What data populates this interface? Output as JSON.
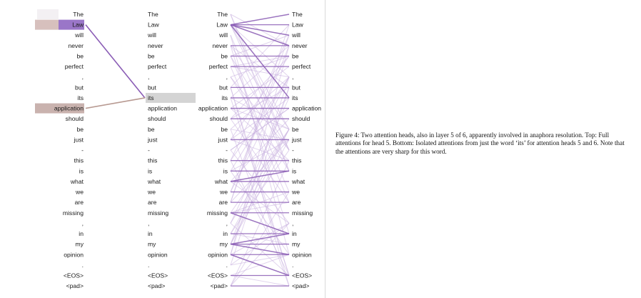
{
  "tokens": [
    "The",
    "Law",
    "will",
    "never",
    "be",
    "perfect",
    ",",
    "but",
    "its",
    "application",
    "should",
    "be",
    "just",
    "-",
    "this",
    "is",
    "what",
    "we",
    "are",
    "missing",
    ",",
    "in",
    "my",
    "opinion",
    ".",
    "<EOS>",
    "<pad>"
  ],
  "caption": "Figure 4: Two attention heads, also in layer 5 of 6, apparently involved in anaphora resolution. Top: Full attentions for head 5. Bottom: Isolated attentions from just the word ‘its’ for attention heads 5 and 6. Note that the attentions are very sharp for this word.",
  "colors": {
    "purple": "#8a5cb5",
    "brown": "#b89a92",
    "lightpurple": "#c9b2e0",
    "highlight_gray": "#d4d4d4"
  },
  "isolated_its": {
    "query_token": "its",
    "head5_target": "Law",
    "head6_target": "application"
  },
  "full_head5_strong_edges": [
    [
      "Law",
      "The"
    ],
    [
      "Law",
      "Law"
    ],
    [
      "Law",
      "will"
    ],
    [
      "Law",
      "never"
    ],
    [
      "Law",
      "its"
    ],
    [
      "never",
      "never"
    ],
    [
      "perfect",
      "perfect"
    ],
    [
      "but",
      "but"
    ],
    [
      "its",
      "its"
    ],
    [
      "application",
      "application"
    ],
    [
      "should",
      "should"
    ],
    [
      "be",
      "be"
    ],
    [
      "just",
      "just"
    ],
    [
      "this",
      "this"
    ],
    [
      "is",
      "is"
    ],
    [
      "what",
      "what"
    ],
    [
      "what",
      "is"
    ],
    [
      "we",
      "we"
    ],
    [
      "are",
      "are"
    ],
    [
      "missing",
      "missing"
    ],
    [
      "in",
      "in"
    ],
    [
      "my",
      "my"
    ],
    [
      "opinion",
      "opinion"
    ],
    [
      "<EOS>",
      "<EOS>"
    ],
    [
      "<pad>",
      "<pad>"
    ],
    [
      "my",
      "in"
    ],
    [
      "opinion",
      "<EOS>"
    ],
    [
      "missing",
      "in"
    ],
    [
      "my",
      "opinion"
    ]
  ]
}
